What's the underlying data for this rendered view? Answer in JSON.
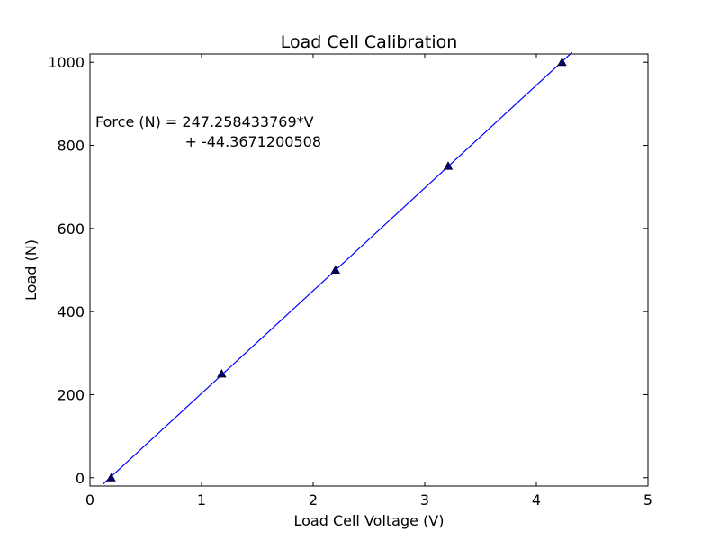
{
  "chart_data": {
    "type": "scatter",
    "title": "Load Cell Calibration",
    "xlabel": "Load Cell Voltage (V)",
    "ylabel": "Load (N)",
    "xlim": [
      0,
      5
    ],
    "ylim": [
      -20,
      1020
    ],
    "x_ticks": [
      0,
      1,
      2,
      3,
      4,
      5
    ],
    "y_ticks": [
      0,
      200,
      400,
      600,
      800,
      1000
    ],
    "grid": false,
    "series": [
      {
        "marker": "triangle",
        "color": "#000080",
        "x": [
          0.19,
          1.18,
          2.2,
          3.21,
          4.23
        ],
        "y": [
          0,
          250,
          500,
          750,
          1000
        ]
      }
    ],
    "fit_line": {
      "slope": 247.258433769,
      "intercept": -44.3671200508,
      "color": "#0000ff",
      "x_range": [
        0.12,
        4.32
      ]
    },
    "annotation": {
      "line1": "Force (N) = 247.258433769*V",
      "line2": "+ -44.3671200508"
    }
  }
}
